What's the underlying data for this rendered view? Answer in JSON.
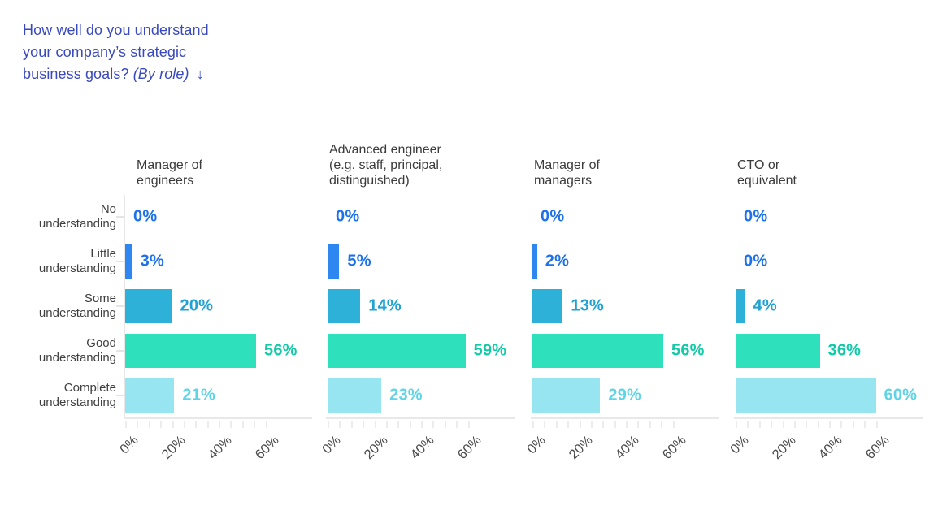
{
  "title": {
    "line1": "How well do you understand",
    "line2": "your company’s strategic",
    "line3_text": "business goals?",
    "qualifier": "(By role)",
    "arrow_icon": "↓",
    "color": "#3a4abd"
  },
  "chart_data": {
    "type": "bar",
    "orientation": "horizontal",
    "title": "How well do you understand your company’s strategic business goals? (By role)",
    "categories": [
      "No understanding",
      "Little understanding",
      "Some understanding",
      "Good understanding",
      "Complete understanding"
    ],
    "category_lines": [
      [
        "No",
        "understanding"
      ],
      [
        "Little",
        "understanding"
      ],
      [
        "Some",
        "understanding"
      ],
      [
        "Good",
        "understanding"
      ],
      [
        "Complete",
        "understanding"
      ]
    ],
    "series": [
      {
        "name": "Manager of engineers",
        "name_lines": [
          "Manager of",
          "engineers"
        ],
        "values": [
          0,
          3,
          20,
          56,
          21
        ]
      },
      {
        "name": "Advanced engineer (e.g. staff, principal, distinguished)",
        "name_lines": [
          "Advanced engineer",
          "(e.g. staff, principal,",
          "distinguished)"
        ],
        "values": [
          0,
          5,
          14,
          59,
          23
        ]
      },
      {
        "name": "Manager of managers",
        "name_lines": [
          "Manager of",
          "managers"
        ],
        "values": [
          0,
          2,
          13,
          56,
          29
        ]
      },
      {
        "name": "CTO or equivalent",
        "name_lines": [
          "CTO or",
          "equivalent"
        ],
        "values": [
          0,
          0,
          4,
          36,
          60
        ]
      }
    ],
    "value_suffix": "%",
    "xlim": [
      0,
      80
    ],
    "x_tick_values": [
      0,
      20,
      40,
      60
    ],
    "x_tick_labels": [
      "0%",
      "20%",
      "40%",
      "60%"
    ],
    "minor_tick_step": 5,
    "minor_tick_max": 60,
    "grid": false,
    "legend": "none",
    "colors": {
      "bars": [
        "#2e86f0",
        "#2e86f0",
        "#2eb1d9",
        "#2fe0bd",
        "#96e5f0"
      ],
      "value_labels": [
        "#1d72eb",
        "#1d72eb",
        "#21a2d2",
        "#14c9a7",
        "#5fd4e6"
      ],
      "axis_line": "#e8e8e8",
      "tick_mark": "#ececec",
      "category_text": "#3f3f3f",
      "panel_title_text": "#3b3b3b",
      "tick_label_text": "#4c4c4c"
    }
  }
}
